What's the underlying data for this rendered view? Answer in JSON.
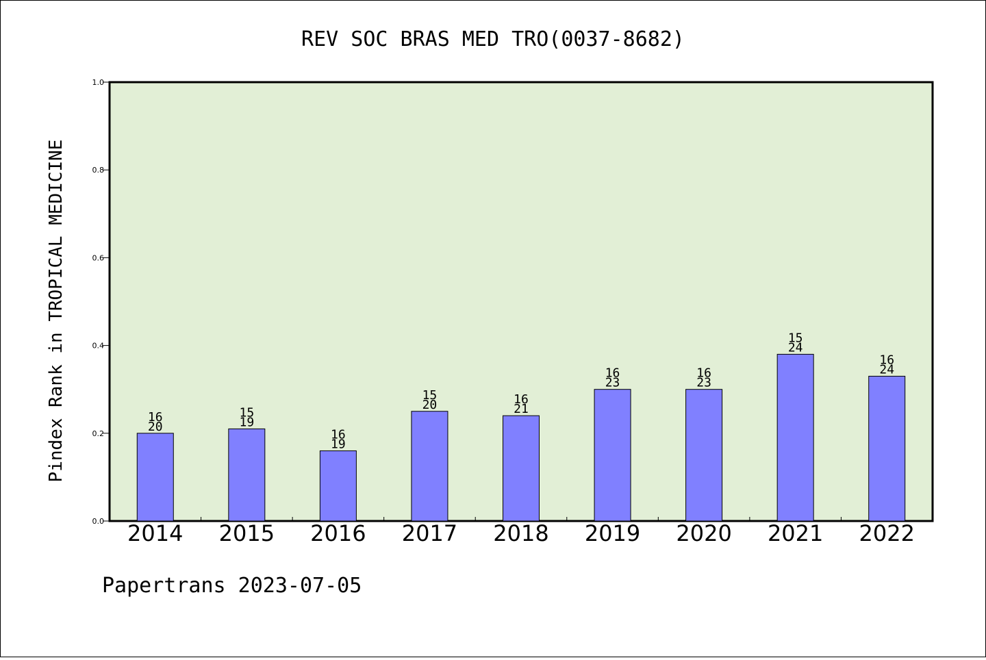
{
  "chart_data": {
    "type": "bar",
    "title": "REV SOC BRAS MED TRO(0037-8682)",
    "ylabel": "Pindex Rank in TROPICAL MEDICINE",
    "xlabel": "",
    "categories": [
      "2014",
      "2015",
      "2016",
      "2017",
      "2018",
      "2019",
      "2020",
      "2021",
      "2022"
    ],
    "values": [
      0.2,
      0.21,
      0.16,
      0.25,
      0.24,
      0.3,
      0.3,
      0.38,
      0.33
    ],
    "rank_labels": [
      "16",
      "15",
      "16",
      "15",
      "16",
      "16",
      "16",
      "15",
      "16"
    ],
    "total_labels": [
      "20",
      "19",
      "19",
      "20",
      "21",
      "23",
      "23",
      "24",
      "24"
    ],
    "ylim": [
      0,
      1.0
    ],
    "yticks": [
      "0.0",
      "0.2",
      "0.4",
      "0.6",
      "0.8",
      "1.0"
    ],
    "grid": false,
    "legend": "none",
    "colors": {
      "bar": "#8080ff",
      "plot_background": "#e2efd6",
      "axis": "#000000"
    }
  },
  "footer": "Papertrans 2023-07-05"
}
